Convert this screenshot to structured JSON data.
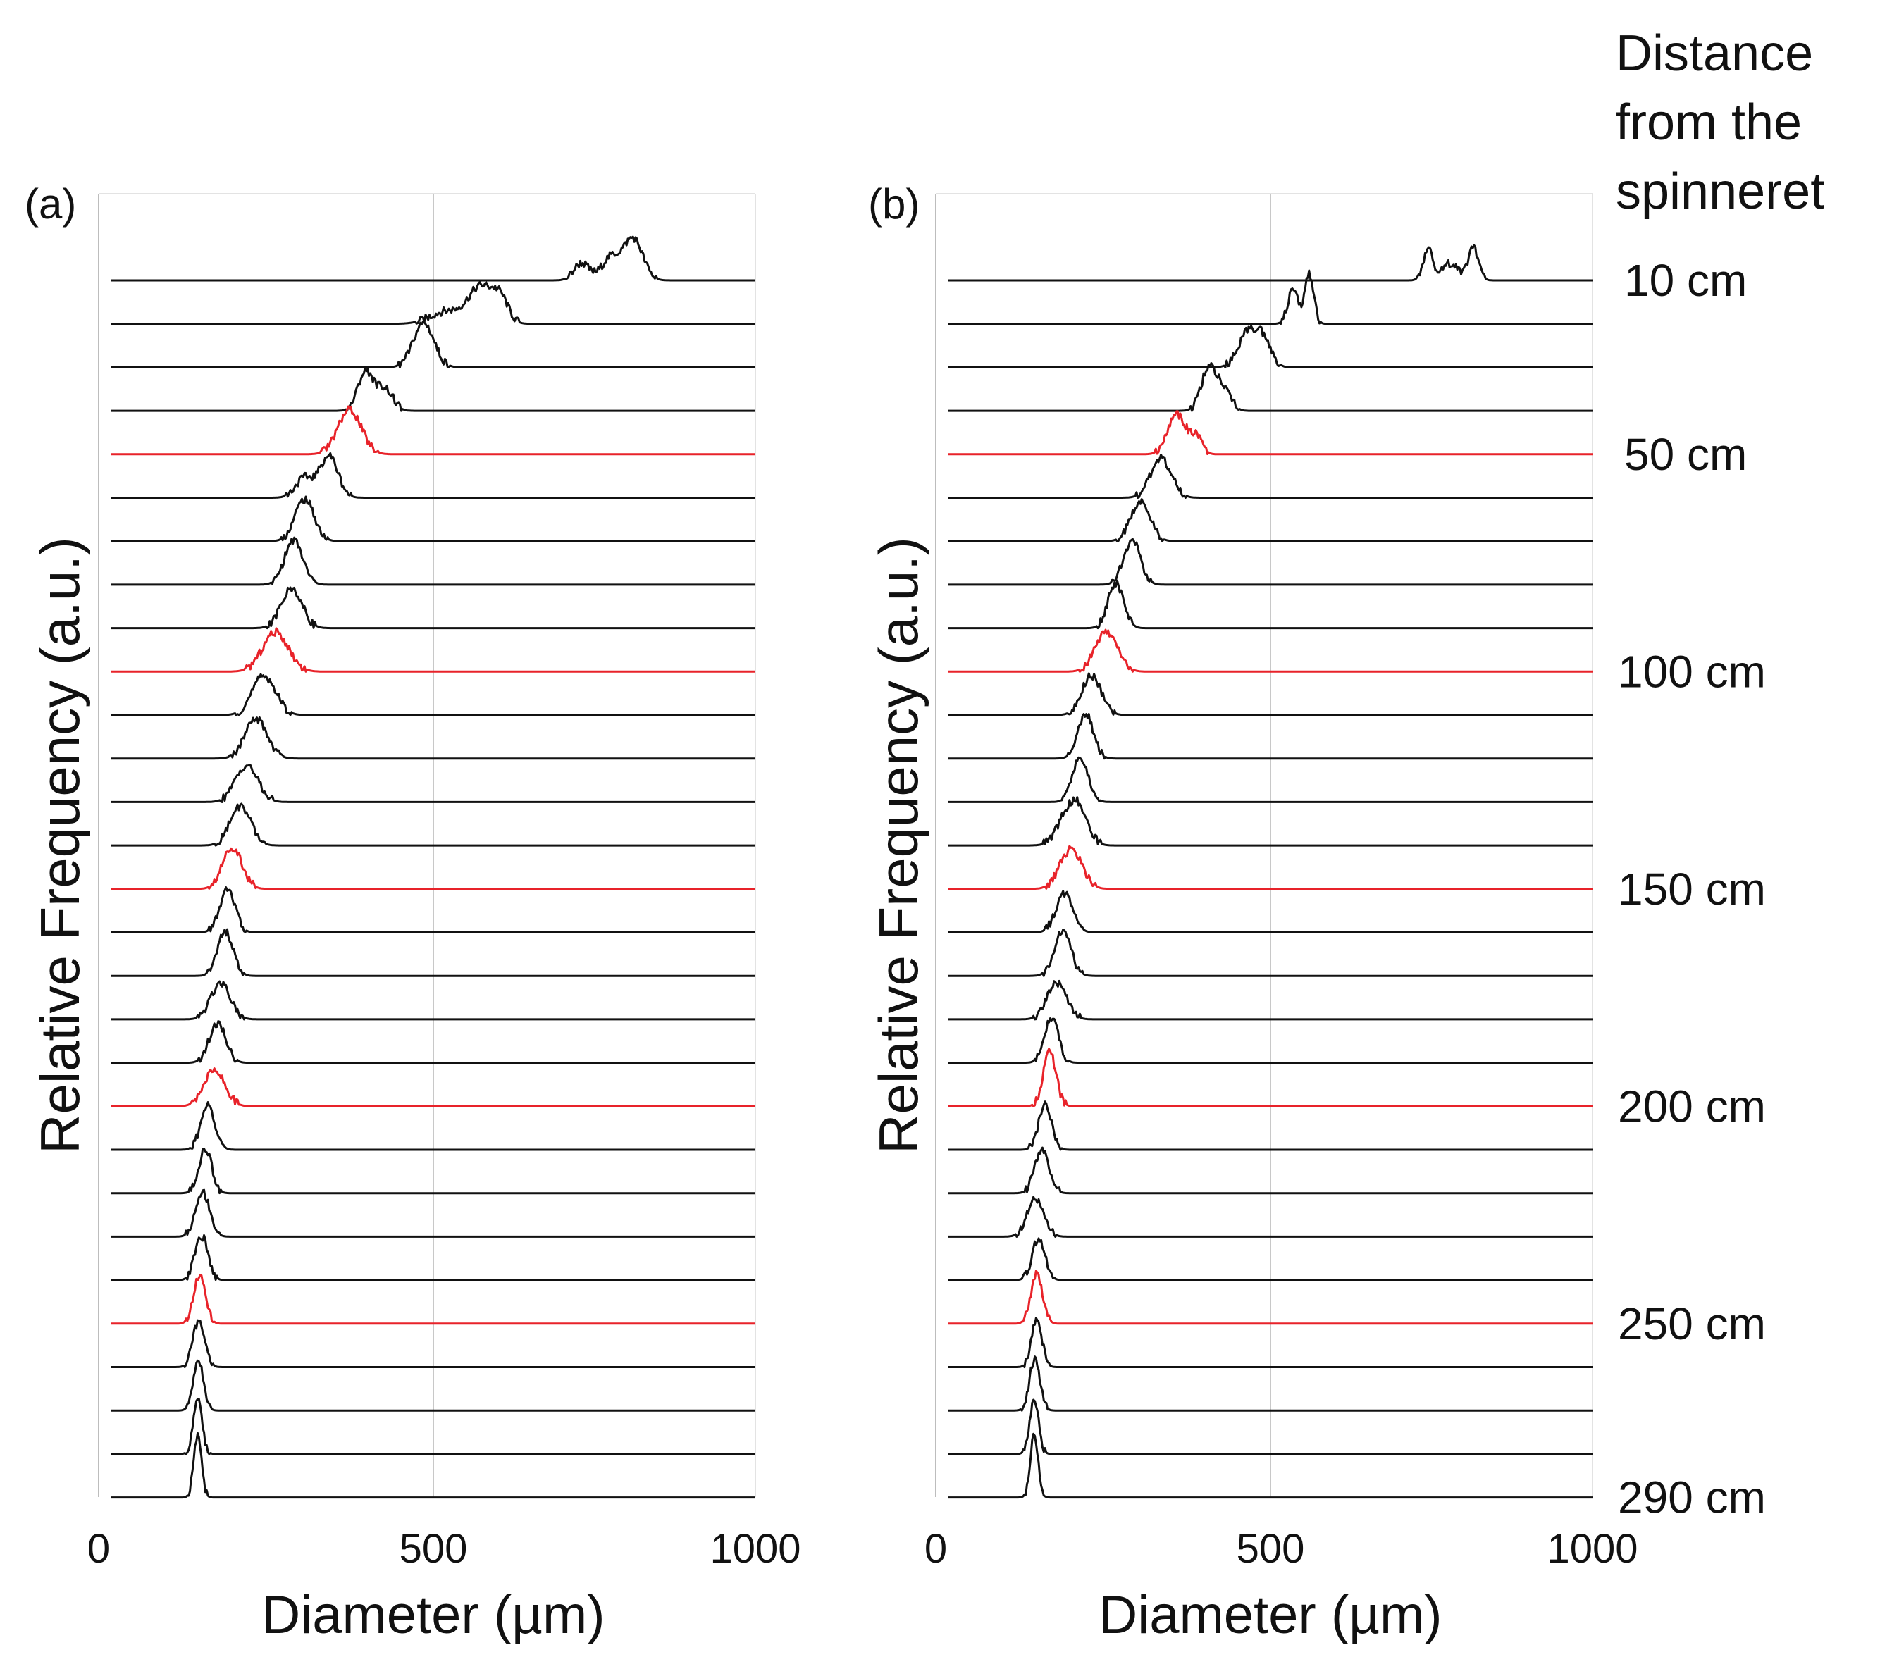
{
  "distance_title": [
    "Distance",
    "from the",
    "spinneret"
  ],
  "distance_labels": [
    {
      "label": "10 cm",
      "row": 0
    },
    {
      "label": "50 cm",
      "row": 4
    },
    {
      "label": "100 cm",
      "row": 9
    },
    {
      "label": "150 cm",
      "row": 14
    },
    {
      "label": "200 cm",
      "row": 19
    },
    {
      "label": "250 cm",
      "row": 24
    },
    {
      "label": "290 cm",
      "row": 28
    }
  ],
  "colors": {
    "normal": "#111111",
    "highlight": "#e8232a",
    "grid": "#c8c8c8",
    "axis": "#bdbdbd"
  },
  "chart_data": [
    {
      "type": "line",
      "panel": "(a)",
      "title": "",
      "xlabel": "Diameter (µm)",
      "ylabel": "Relative Frequency (a.u.)",
      "xlim": [
        0,
        1000
      ],
      "xticks": [
        "0",
        "500",
        "1000"
      ],
      "grid": "vertical line at 500",
      "series_style": "ridgeline / stacked distributions, one row per distance",
      "highlighted_rows": [
        4,
        9,
        14,
        19,
        24
      ],
      "peaks": [
        {
          "row": 0,
          "distance_cm": 10,
          "peaks": [
            [
              730,
              0.35,
              12
            ],
            [
              775,
              0.45,
              14
            ],
            [
              810,
              0.85,
              15
            ]
          ]
        },
        {
          "row": 1,
          "distance_cm": 20,
          "peaks": [
            [
              520,
              0.25,
              25
            ],
            [
              575,
              0.75,
              20
            ],
            [
              605,
              0.4,
              12
            ]
          ]
        },
        {
          "row": 2,
          "distance_cm": 30,
          "peaks": [
            [
              485,
              0.9,
              16
            ]
          ]
        },
        {
          "row": 3,
          "distance_cm": 40,
          "peaks": [
            [
              395,
              0.8,
              12
            ],
            [
              425,
              0.45,
              12
            ]
          ]
        },
        {
          "row": 4,
          "distance_cm": 50,
          "peaks": [
            [
              370,
              0.9,
              18
            ]
          ]
        },
        {
          "row": 5,
          "distance_cm": 60,
          "peaks": [
            [
              300,
              0.4,
              14
            ],
            [
              338,
              0.85,
              14
            ]
          ]
        },
        {
          "row": 6,
          "distance_cm": 70,
          "peaks": [
            [
              300,
              0.85,
              15
            ]
          ]
        },
        {
          "row": 7,
          "distance_cm": 80,
          "peaks": [
            [
              283,
              0.9,
              14
            ]
          ]
        },
        {
          "row": 8,
          "distance_cm": 90,
          "peaks": [
            [
              280,
              0.8,
              16
            ]
          ]
        },
        {
          "row": 9,
          "distance_cm": 100,
          "peaks": [
            [
              255,
              0.8,
              20
            ]
          ]
        },
        {
          "row": 10,
          "distance_cm": 110,
          "peaks": [
            [
              237,
              0.8,
              18
            ]
          ]
        },
        {
          "row": 11,
          "distance_cm": 120,
          "peaks": [
            [
              225,
              0.8,
              17
            ]
          ]
        },
        {
          "row": 12,
          "distance_cm": 130,
          "peaks": [
            [
              210,
              0.75,
              17
            ]
          ]
        },
        {
          "row": 13,
          "distance_cm": 140,
          "peaks": [
            [
              200,
              0.8,
              16
            ]
          ]
        },
        {
          "row": 14,
          "distance_cm": 150,
          "peaks": [
            [
              188,
              0.85,
              15
            ]
          ]
        },
        {
          "row": 15,
          "distance_cm": 160,
          "peaks": [
            [
              180,
              0.85,
              12
            ]
          ]
        },
        {
          "row": 16,
          "distance_cm": 170,
          "peaks": [
            [
              177,
              0.9,
              12
            ]
          ]
        },
        {
          "row": 17,
          "distance_cm": 180,
          "peaks": [
            [
              170,
              0.75,
              15
            ]
          ]
        },
        {
          "row": 18,
          "distance_cm": 190,
          "peaks": [
            [
              165,
              0.8,
              13
            ]
          ]
        },
        {
          "row": 19,
          "distance_cm": 200,
          "peaks": [
            [
              160,
              0.75,
              16
            ]
          ]
        },
        {
          "row": 20,
          "distance_cm": 210,
          "peaks": [
            [
              150,
              0.9,
              11
            ]
          ]
        },
        {
          "row": 21,
          "distance_cm": 220,
          "peaks": [
            [
              146,
              0.9,
              10
            ]
          ]
        },
        {
          "row": 22,
          "distance_cm": 230,
          "peaks": [
            [
              142,
              0.9,
              11
            ]
          ]
        },
        {
          "row": 23,
          "distance_cm": 240,
          "peaks": [
            [
              140,
              0.9,
              10
            ]
          ]
        },
        {
          "row": 24,
          "distance_cm": 250,
          "peaks": [
            [
              137,
              1.0,
              9
            ]
          ]
        },
        {
          "row": 25,
          "distance_cm": 260,
          "peaks": [
            [
              136,
              0.95,
              9
            ]
          ]
        },
        {
          "row": 26,
          "distance_cm": 270,
          "peaks": [
            [
              135,
              1.0,
              8
            ]
          ]
        },
        {
          "row": 27,
          "distance_cm": 280,
          "peaks": [
            [
              134,
              1.1,
              7
            ]
          ]
        },
        {
          "row": 28,
          "distance_cm": 290,
          "peaks": [
            [
              134,
              1.25,
              6
            ]
          ]
        }
      ]
    },
    {
      "type": "line",
      "panel": "(b)",
      "title": "",
      "xlabel": "Diameter (µm)",
      "ylabel": "Relative Frequency (a.u.)",
      "xlim": [
        0,
        1000
      ],
      "xticks": [
        "0",
        "500",
        "1000"
      ],
      "grid": "vertical line at 500",
      "series_style": "ridgeline / stacked distributions, one row per distance",
      "highlighted_rows": [
        4,
        9,
        14,
        19,
        24
      ],
      "peaks": [
        {
          "row": 0,
          "distance_cm": 10,
          "peaks": [
            [
              745,
              0.6,
              8
            ],
            [
              780,
              0.35,
              12
            ],
            [
              815,
              0.65,
              8
            ]
          ]
        },
        {
          "row": 1,
          "distance_cm": 20,
          "peaks": [
            [
              535,
              0.7,
              8
            ],
            [
              560,
              1.0,
              7
            ]
          ]
        },
        {
          "row": 2,
          "distance_cm": 30,
          "peaks": [
            [
              465,
              0.7,
              15
            ],
            [
              490,
              0.5,
              12
            ]
          ]
        },
        {
          "row": 3,
          "distance_cm": 40,
          "peaks": [
            [
              405,
              0.9,
              12
            ],
            [
              430,
              0.4,
              10
            ]
          ]
        },
        {
          "row": 4,
          "distance_cm": 50,
          "peaks": [
            [
              355,
              0.8,
              14
            ],
            [
              385,
              0.35,
              9
            ]
          ]
        },
        {
          "row": 5,
          "distance_cm": 60,
          "peaks": [
            [
              330,
              0.8,
              16
            ]
          ]
        },
        {
          "row": 6,
          "distance_cm": 70,
          "peaks": [
            [
              298,
              0.8,
              15
            ]
          ]
        },
        {
          "row": 7,
          "distance_cm": 80,
          "peaks": [
            [
              285,
              0.9,
              13
            ]
          ]
        },
        {
          "row": 8,
          "distance_cm": 90,
          "peaks": [
            [
              260,
              0.9,
              12
            ]
          ]
        },
        {
          "row": 9,
          "distance_cm": 100,
          "peaks": [
            [
              245,
              0.8,
              17
            ]
          ]
        },
        {
          "row": 10,
          "distance_cm": 110,
          "peaks": [
            [
              222,
              0.8,
              15
            ]
          ]
        },
        {
          "row": 11,
          "distance_cm": 120,
          "peaks": [
            [
              213,
              0.9,
              12
            ]
          ]
        },
        {
          "row": 12,
          "distance_cm": 130,
          "peaks": [
            [
              205,
              0.9,
              12
            ]
          ]
        },
        {
          "row": 13,
          "distance_cm": 140,
          "peaks": [
            [
              185,
              0.6,
              16
            ],
            [
              205,
              0.55,
              14
            ]
          ]
        },
        {
          "row": 14,
          "distance_cm": 150,
          "peaks": [
            [
              190,
              0.8,
              17
            ]
          ]
        },
        {
          "row": 15,
          "distance_cm": 160,
          "peaks": [
            [
              180,
              0.8,
              13
            ]
          ]
        },
        {
          "row": 16,
          "distance_cm": 170,
          "peaks": [
            [
              177,
              0.9,
              13
            ]
          ]
        },
        {
          "row": 17,
          "distance_cm": 180,
          "peaks": [
            [
              168,
              0.75,
              15
            ]
          ]
        },
        {
          "row": 18,
          "distance_cm": 190,
          "peaks": [
            [
              160,
              0.9,
              11
            ]
          ]
        },
        {
          "row": 19,
          "distance_cm": 200,
          "peaks": [
            [
              157,
              1.1,
              10
            ]
          ]
        },
        {
          "row": 20,
          "distance_cm": 210,
          "peaks": [
            [
              150,
              0.9,
              10
            ]
          ]
        },
        {
          "row": 21,
          "distance_cm": 220,
          "peaks": [
            [
              145,
              0.9,
              11
            ]
          ]
        },
        {
          "row": 22,
          "distance_cm": 230,
          "peaks": [
            [
              135,
              0.75,
              13
            ]
          ]
        },
        {
          "row": 23,
          "distance_cm": 240,
          "peaks": [
            [
              140,
              0.85,
              10
            ]
          ]
        },
        {
          "row": 24,
          "distance_cm": 250,
          "peaks": [
            [
              137,
              1.0,
              9
            ]
          ]
        },
        {
          "row": 25,
          "distance_cm": 260,
          "peaks": [
            [
              137,
              1.0,
              8
            ]
          ]
        },
        {
          "row": 26,
          "distance_cm": 270,
          "peaks": [
            [
              134,
              1.05,
              8
            ]
          ]
        },
        {
          "row": 27,
          "distance_cm": 280,
          "peaks": [
            [
              133,
              1.1,
              7
            ]
          ]
        },
        {
          "row": 28,
          "distance_cm": 290,
          "peaks": [
            [
              133,
              1.3,
              6
            ]
          ]
        }
      ]
    }
  ]
}
